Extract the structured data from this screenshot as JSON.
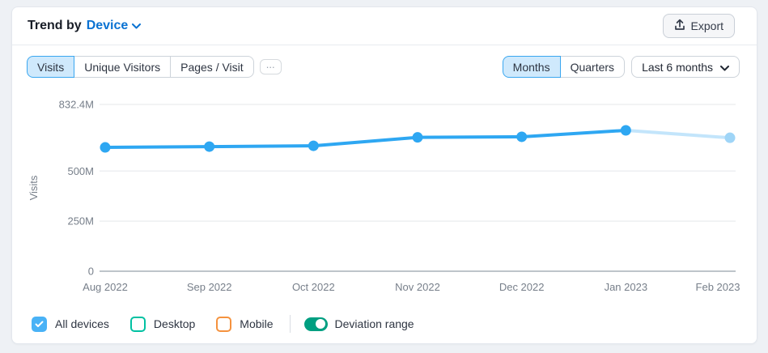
{
  "header": {
    "title_prefix": "Trend by",
    "title_selector": "Device",
    "export_label": "Export"
  },
  "controls": {
    "metric_tabs": [
      {
        "label": "Visits",
        "selected": true
      },
      {
        "label": "Unique Visitors",
        "selected": false
      },
      {
        "label": "Pages / Visit",
        "selected": false
      }
    ],
    "more_label": "...",
    "period_tabs": [
      {
        "label": "Months",
        "selected": true
      },
      {
        "label": "Quarters",
        "selected": false
      }
    ],
    "range_dropdown_value": "Last 6 months"
  },
  "chart_data": {
    "type": "line",
    "title": "Trend by Device — Visits",
    "ylabel": "Visits",
    "x": [
      "Aug 2022",
      "Sep 2022",
      "Oct 2022",
      "Nov 2022",
      "Dec 2022",
      "Jan 2023",
      "Feb 2023"
    ],
    "series": [
      {
        "name": "All devices",
        "unit": "millions",
        "values": [
          618,
          622,
          626,
          668,
          671,
          703,
          666
        ]
      }
    ],
    "ylim": [
      0,
      832.4
    ],
    "yticks": [
      {
        "label": "832.4M",
        "value": 832.4
      },
      {
        "label": "500M",
        "value": 500
      },
      {
        "label": "250M",
        "value": 250
      },
      {
        "label": "0",
        "value": 0
      }
    ],
    "grid": true,
    "legend_position": "bottom",
    "partial_last_segment": true,
    "line_color": "#2ea7f2",
    "partial_line_color": "#c3e5fb",
    "partial_point_color": "#9fd5f7",
    "gridline_color": "#edeff1",
    "zero_line_color": "#a9b0b8"
  },
  "legend": {
    "items": [
      {
        "label": "All devices",
        "checked": true,
        "color": "#49b2f6"
      },
      {
        "label": "Desktop",
        "checked": false,
        "color": "#00c1a2"
      },
      {
        "label": "Mobile",
        "checked": false,
        "color": "#f5923e"
      }
    ],
    "toggle": {
      "label": "Deviation range",
      "on": true,
      "color": "#009f81"
    }
  }
}
